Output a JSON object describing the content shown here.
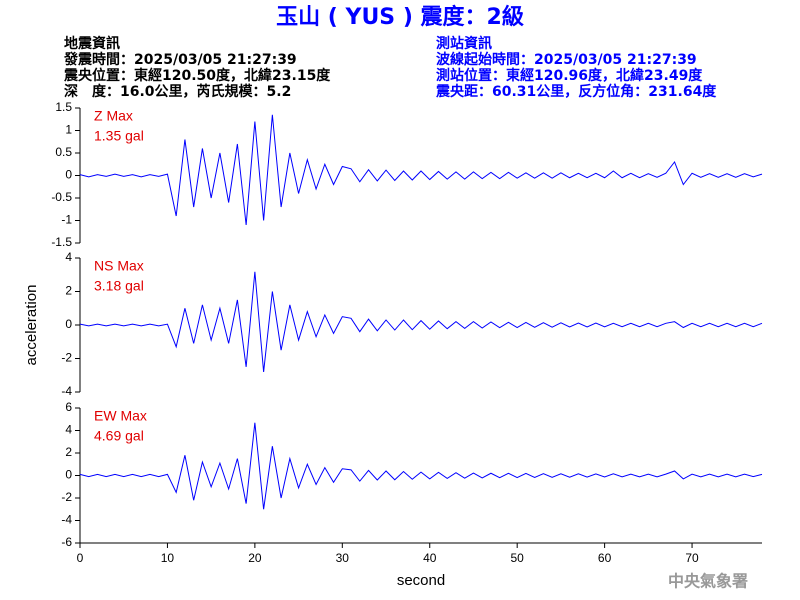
{
  "title": "玉山 ( YUS ) 震度：2級",
  "header": {
    "left": [
      "地震資訊",
      "發震時間：2025/03/05 21:27:39",
      "震央位置：東經120.50度，北緯23.15度",
      "深　度：16.0公里，芮氏規模：5.2"
    ],
    "right": [
      "測站資訊",
      "波線起始時間：2025/03/05 21:27:39",
      "測站位置：東經120.96度，北緯23.49度",
      "震央距：60.31公里，反方位角：231.64度"
    ]
  },
  "watermark": "中央氣象署",
  "chart_data": [
    {
      "type": "line",
      "annotations": [
        "Z Max",
        "1.35 gal"
      ],
      "x": [
        0,
        1,
        2,
        3,
        4,
        5,
        6,
        7,
        8,
        9,
        10,
        11,
        12,
        13,
        14,
        15,
        16,
        17,
        18,
        19,
        20,
        21,
        22,
        23,
        24,
        25,
        26,
        27,
        28,
        29,
        30,
        31,
        32,
        33,
        34,
        35,
        36,
        37,
        38,
        39,
        40,
        41,
        42,
        43,
        44,
        45,
        46,
        47,
        48,
        49,
        50,
        51,
        52,
        53,
        54,
        55,
        56,
        57,
        58,
        59,
        60,
        61,
        62,
        63,
        64,
        65,
        66,
        67,
        68,
        69,
        70,
        71,
        72,
        73,
        74,
        75,
        76,
        77,
        78
      ],
      "series": [
        {
          "color": "#0000ff",
          "values": [
            0.02,
            -0.03,
            0.02,
            -0.02,
            0.03,
            -0.02,
            0.02,
            -0.03,
            0.02,
            -0.02,
            0.03,
            -0.9,
            0.8,
            -0.7,
            0.6,
            -0.5,
            0.5,
            -0.6,
            0.7,
            -1.1,
            1.2,
            -1.0,
            1.35,
            -0.7,
            0.5,
            -0.4,
            0.35,
            -0.3,
            0.25,
            -0.2,
            0.2,
            0.15,
            -0.14,
            0.13,
            -0.12,
            0.12,
            -0.11,
            0.1,
            -0.1,
            0.1,
            -0.09,
            0.09,
            -0.08,
            0.08,
            -0.08,
            0.08,
            -0.07,
            0.07,
            -0.07,
            0.07,
            -0.06,
            0.06,
            -0.06,
            0.06,
            -0.06,
            0.06,
            -0.05,
            0.05,
            -0.05,
            0.05,
            -0.05,
            0.1,
            -0.05,
            0.05,
            -0.05,
            0.04,
            -0.04,
            0.05,
            0.3,
            -0.2,
            0.05,
            -0.04,
            0.04,
            -0.04,
            0.04,
            -0.04,
            0.04,
            -0.03,
            0.03
          ]
        }
      ],
      "xlim": [
        0,
        78
      ],
      "ylim": [
        -1.5,
        1.5
      ],
      "yticks": [
        -1.5,
        -1,
        -0.5,
        0,
        0.5,
        1,
        1.5
      ]
    },
    {
      "type": "line",
      "annotations": [
        "NS Max",
        "3.18 gal"
      ],
      "ylabel": "acceleration",
      "x": [
        0,
        1,
        2,
        3,
        4,
        5,
        6,
        7,
        8,
        9,
        10,
        11,
        12,
        13,
        14,
        15,
        16,
        17,
        18,
        19,
        20,
        21,
        22,
        23,
        24,
        25,
        26,
        27,
        28,
        29,
        30,
        31,
        32,
        33,
        34,
        35,
        36,
        37,
        38,
        39,
        40,
        41,
        42,
        43,
        44,
        45,
        46,
        47,
        48,
        49,
        50,
        51,
        52,
        53,
        54,
        55,
        56,
        57,
        58,
        59,
        60,
        61,
        62,
        63,
        64,
        65,
        66,
        67,
        68,
        69,
        70,
        71,
        72,
        73,
        74,
        75,
        76,
        77,
        78
      ],
      "series": [
        {
          "color": "#0000ff",
          "values": [
            0.05,
            -0.05,
            0.05,
            -0.05,
            0.05,
            -0.05,
            0.05,
            -0.05,
            0.05,
            -0.05,
            0.05,
            -1.3,
            1.0,
            -1.1,
            1.2,
            -0.9,
            1.0,
            -1.1,
            1.5,
            -2.5,
            3.18,
            -2.8,
            2.0,
            -1.5,
            1.2,
            -0.9,
            0.8,
            -0.7,
            0.6,
            -0.5,
            0.5,
            0.4,
            -0.4,
            0.35,
            -0.35,
            0.3,
            -0.3,
            0.3,
            -0.28,
            0.26,
            -0.25,
            0.24,
            -0.22,
            0.2,
            -0.2,
            0.2,
            -0.18,
            0.18,
            -0.16,
            0.16,
            -0.15,
            0.15,
            -0.14,
            0.14,
            -0.13,
            0.13,
            -0.12,
            0.12,
            -0.12,
            0.12,
            -0.11,
            0.1,
            -0.1,
            0.1,
            -0.1,
            0.1,
            -0.1,
            0.1,
            0.2,
            -0.15,
            0.1,
            -0.1,
            0.1,
            -0.1,
            0.1,
            -0.1,
            0.1,
            -0.1,
            0.1
          ]
        }
      ],
      "xlim": [
        0,
        78
      ],
      "ylim": [
        -4,
        4
      ],
      "yticks": [
        -4,
        -2,
        0,
        2,
        4
      ]
    },
    {
      "type": "line",
      "annotations": [
        "EW Max",
        "4.69 gal"
      ],
      "xlabel": "second",
      "x": [
        0,
        1,
        2,
        3,
        4,
        5,
        6,
        7,
        8,
        9,
        10,
        11,
        12,
        13,
        14,
        15,
        16,
        17,
        18,
        19,
        20,
        21,
        22,
        23,
        24,
        25,
        26,
        27,
        28,
        29,
        30,
        31,
        32,
        33,
        34,
        35,
        36,
        37,
        38,
        39,
        40,
        41,
        42,
        43,
        44,
        45,
        46,
        47,
        48,
        49,
        50,
        51,
        52,
        53,
        54,
        55,
        56,
        57,
        58,
        59,
        60,
        61,
        62,
        63,
        64,
        65,
        66,
        67,
        68,
        69,
        70,
        71,
        72,
        73,
        74,
        75,
        76,
        77,
        78
      ],
      "series": [
        {
          "color": "#0000ff",
          "values": [
            0.1,
            -0.1,
            0.1,
            -0.1,
            0.1,
            -0.1,
            0.1,
            -0.1,
            0.1,
            -0.1,
            0.1,
            -1.5,
            1.8,
            -2.2,
            1.2,
            -1.0,
            1.1,
            -1.2,
            1.5,
            -2.5,
            4.69,
            -3.0,
            2.6,
            -2.0,
            1.5,
            -1.1,
            1.0,
            -0.8,
            0.7,
            -0.6,
            0.6,
            0.5,
            -0.5,
            0.45,
            -0.4,
            0.4,
            -0.38,
            0.35,
            -0.33,
            0.3,
            -0.3,
            0.28,
            -0.26,
            0.25,
            -0.24,
            0.22,
            -0.22,
            0.2,
            -0.2,
            0.2,
            -0.18,
            0.18,
            -0.17,
            0.16,
            -0.16,
            0.15,
            -0.15,
            0.15,
            -0.14,
            0.14,
            -0.13,
            0.15,
            -0.12,
            0.12,
            -0.12,
            0.12,
            -0.12,
            0.12,
            0.4,
            -0.3,
            0.12,
            -0.12,
            0.12,
            -0.12,
            0.12,
            -0.12,
            0.12,
            -0.1,
            0.1
          ]
        }
      ],
      "xlim": [
        0,
        78
      ],
      "ylim": [
        -6,
        6
      ],
      "yticks": [
        -6,
        -4,
        -2,
        0,
        2,
        4,
        6
      ],
      "xticks": [
        0,
        10,
        20,
        30,
        40,
        50,
        60,
        70
      ]
    }
  ]
}
